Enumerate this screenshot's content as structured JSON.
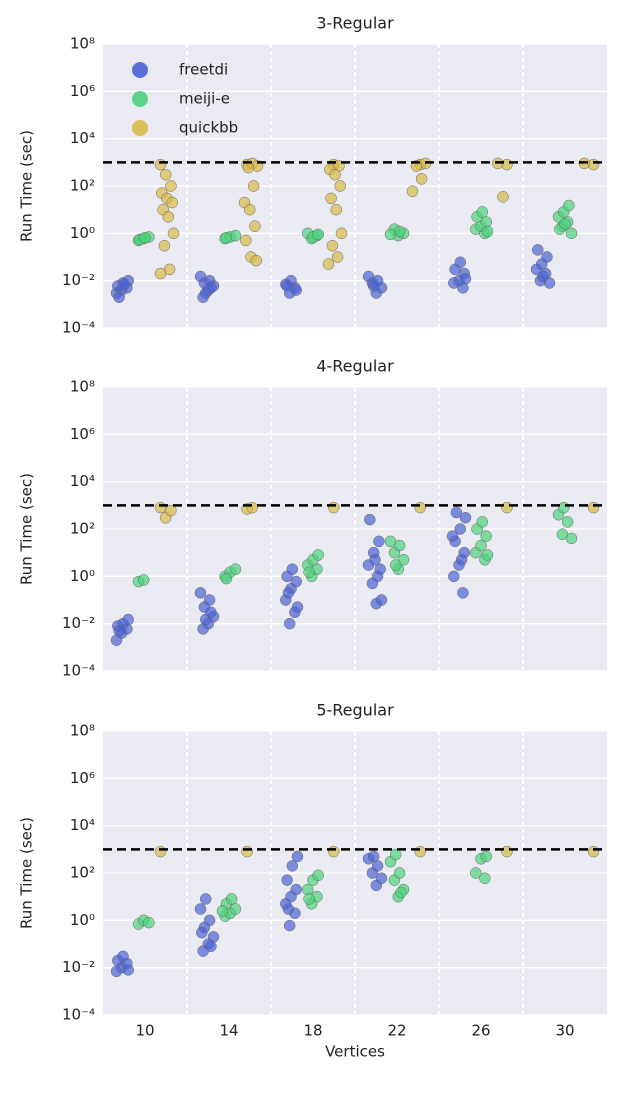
{
  "chart_data": [
    {
      "type": "strip",
      "title": "3-Regular",
      "ylabel": "Run Time (sec)",
      "log_y": true,
      "grid": true,
      "legend": "upper left",
      "hline": 1000,
      "categories": [
        10,
        14,
        18,
        22,
        26,
        30
      ],
      "ylim": [
        0.0001,
        100000000
      ],
      "yticks": [
        {
          "value": 0.0001,
          "label": "10⁻⁴"
        },
        {
          "value": 0.01,
          "label": "10⁻²"
        },
        {
          "value": 1,
          "label": "10⁰"
        },
        {
          "value": 100,
          "label": "10²"
        },
        {
          "value": 10000,
          "label": "10⁴"
        },
        {
          "value": 1000000,
          "label": "10⁶"
        },
        {
          "value": 100000000,
          "label": "10⁸"
        }
      ],
      "series": [
        {
          "name": "freetdi",
          "color": "#4c62d6",
          "values": [
            [
              0.003,
              0.004,
              0.005,
              0.006,
              0.008,
              0.01,
              0.002,
              0.007
            ],
            [
              0.002,
              0.004,
              0.006,
              0.008,
              0.01,
              0.015,
              0.003,
              0.005
            ],
            [
              0.003,
              0.005,
              0.007,
              0.01,
              0.004,
              0.006
            ],
            [
              0.003,
              0.005,
              0.008,
              0.01,
              0.015,
              0.006
            ],
            [
              0.005,
              0.008,
              0.01,
              0.02,
              0.03,
              0.06,
              0.012
            ],
            [
              0.008,
              0.01,
              0.02,
              0.03,
              0.05,
              0.1,
              0.2,
              0.015
            ]
          ]
        },
        {
          "name": "meiji-e",
          "color": "#4cd47a",
          "values": [
            [
              0.5,
              0.6,
              0.7,
              0.55,
              0.65
            ],
            [
              0.6,
              0.7,
              0.8,
              0.65
            ],
            [
              0.6,
              0.8,
              1,
              0.7,
              0.9
            ],
            [
              0.8,
              1,
              1.5,
              1.2,
              0.9
            ],
            [
              1,
              1.5,
              2,
              3,
              5,
              8,
              1.2
            ],
            [
              1,
              2,
              3,
              5,
              8,
              15,
              1.5,
              2.5
            ]
          ]
        },
        {
          "name": "quickbb",
          "color": "#d8b946",
          "values": [
            [
              800,
              300,
              100,
              50,
              30,
              20,
              10,
              5,
              1,
              0.3,
              0.03,
              0.02
            ],
            [
              800,
              900,
              700,
              600,
              100,
              20,
              10,
              2,
              0.5,
              0.1,
              0.07
            ],
            [
              800,
              700,
              500,
              300,
              100,
              30,
              10,
              1,
              0.3,
              0.1,
              0.05
            ],
            [
              800,
              900,
              700,
              200,
              60
            ],
            [
              800,
              900,
              35
            ],
            [
              800,
              900
            ]
          ]
        }
      ]
    },
    {
      "type": "strip",
      "title": "4-Regular",
      "ylabel": "Run Time (sec)",
      "log_y": true,
      "grid": true,
      "hline": 1000,
      "categories": [
        10,
        14,
        18,
        22,
        26,
        30
      ],
      "ylim": [
        0.0001,
        100000000
      ],
      "yticks": [
        {
          "value": 0.0001,
          "label": "10⁻⁴"
        },
        {
          "value": 0.01,
          "label": "10⁻²"
        },
        {
          "value": 1,
          "label": "10⁰"
        },
        {
          "value": 100,
          "label": "10²"
        },
        {
          "value": 10000,
          "label": "10⁴"
        },
        {
          "value": 1000000,
          "label": "10⁶"
        },
        {
          "value": 100000000,
          "label": "10⁸"
        }
      ],
      "series": [
        {
          "name": "freetdi",
          "color": "#4c62d6",
          "values": [
            [
              0.002,
              0.004,
              0.006,
              0.008,
              0.01,
              0.015,
              0.005
            ],
            [
              0.006,
              0.01,
              0.02,
              0.05,
              0.1,
              0.2,
              0.015,
              0.03
            ],
            [
              0.01,
              0.03,
              0.1,
              0.3,
              0.6,
              1,
              2,
              0.05,
              0.2
            ],
            [
              0.07,
              0.1,
              0.5,
              1,
              3,
              10,
              30,
              250,
              5,
              2
            ],
            [
              0.2,
              1,
              3,
              10,
              30,
              100,
              300,
              500,
              5,
              50
            ],
            []
          ]
        },
        {
          "name": "meiji-e",
          "color": "#4cd47a",
          "values": [
            [
              0.6,
              0.7
            ],
            [
              1,
              1.5,
              2,
              0.8
            ],
            [
              1,
              2,
              3,
              5,
              8,
              1.5
            ],
            [
              2,
              5,
              10,
              20,
              30,
              3
            ],
            [
              5,
              10,
              20,
              50,
              100,
              200,
              8
            ],
            [
              40,
              60,
              200,
              400,
              800
            ]
          ]
        },
        {
          "name": "quickbb",
          "color": "#d8b946",
          "values": [
            [
              800,
              300,
              600
            ],
            [
              700,
              800
            ],
            [
              800
            ],
            [
              800
            ],
            [
              800
            ],
            [
              800
            ]
          ]
        }
      ]
    },
    {
      "type": "strip",
      "title": "5-Regular",
      "ylabel": "Run Time (sec)",
      "xlabel": "Vertices",
      "log_y": true,
      "grid": true,
      "hline": 1000,
      "categories": [
        10,
        14,
        18,
        22,
        26,
        30
      ],
      "ylim": [
        0.0001,
        100000000
      ],
      "yticks": [
        {
          "value": 0.0001,
          "label": "10⁻⁴"
        },
        {
          "value": 0.01,
          "label": "10⁻²"
        },
        {
          "value": 1,
          "label": "10⁰"
        },
        {
          "value": 100,
          "label": "10²"
        },
        {
          "value": 10000,
          "label": "10⁴"
        },
        {
          "value": 1000000,
          "label": "10⁶"
        },
        {
          "value": 100000000,
          "label": "10⁸"
        }
      ],
      "series": [
        {
          "name": "freetdi",
          "color": "#4c62d6",
          "values": [
            [
              0.007,
              0.01,
              0.015,
              0.02,
              0.03,
              0.008
            ],
            [
              0.05,
              0.1,
              0.2,
              0.5,
              1,
              3,
              8,
              0.08,
              0.3
            ],
            [
              0.6,
              2,
              5,
              10,
              20,
              50,
              200,
              500,
              3
            ],
            [
              30,
              60,
              100,
              200,
              400,
              500
            ],
            [],
            []
          ]
        },
        {
          "name": "meiji-e",
          "color": "#4cd47a",
          "values": [
            [
              0.7,
              1,
              0.8
            ],
            [
              1.5,
              2,
              3,
              5,
              8,
              2.5
            ],
            [
              5,
              10,
              20,
              50,
              80,
              8
            ],
            [
              10,
              20,
              50,
              100,
              300,
              600,
              15
            ],
            [
              60,
              100,
              400,
              500
            ],
            []
          ]
        },
        {
          "name": "quickbb",
          "color": "#d8b946",
          "values": [
            [
              800
            ],
            [
              800
            ],
            [
              800
            ],
            [
              800
            ],
            [
              800
            ],
            [
              800
            ]
          ]
        }
      ]
    }
  ]
}
